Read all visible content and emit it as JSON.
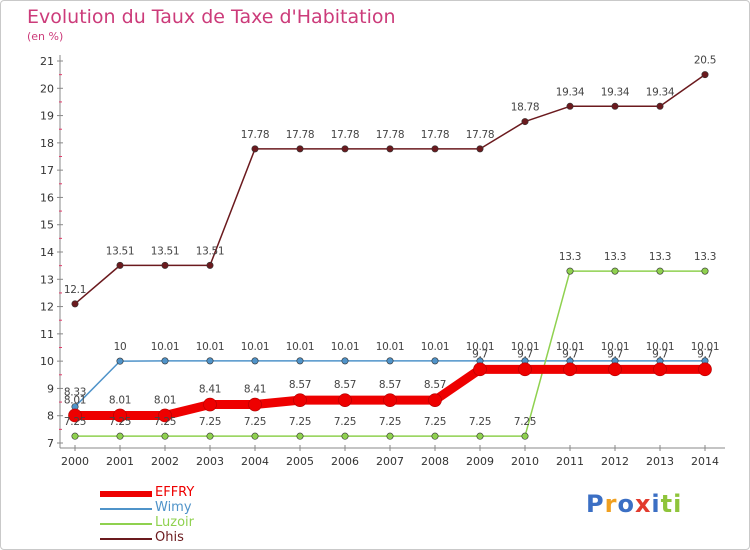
{
  "title": "Evolution du Taux de Taxe d'Habitation",
  "subtitle": "(en %)",
  "logo_text": "Proxiti",
  "chart_data": {
    "type": "line",
    "title": "Evolution du Taux de Taxe d'Habitation",
    "ylabel": "(en %)",
    "xlabel": "",
    "x": [
      2000,
      2001,
      2002,
      2003,
      2004,
      2005,
      2006,
      2007,
      2008,
      2009,
      2010,
      2011,
      2012,
      2013,
      2014
    ],
    "ylim": [
      7,
      21
    ],
    "yticks": [
      7,
      8,
      9,
      10,
      11,
      12,
      13,
      14,
      15,
      16,
      17,
      18,
      19,
      20,
      21
    ],
    "grid": false,
    "legend_position": "bottom-left",
    "series": [
      {
        "name": "Ohis",
        "color": "#6b1a1e",
        "values": [
          12.1,
          13.51,
          13.51,
          13.51,
          17.78,
          17.78,
          17.78,
          17.78,
          17.78,
          17.78,
          18.78,
          19.34,
          19.34,
          19.34,
          20.5
        ],
        "labels": [
          "12.1",
          "13.51",
          "13.51",
          "13.51",
          "17.78",
          "17.78",
          "17.78",
          "17.78",
          "17.78",
          "17.78",
          "18.78",
          "19.34",
          "19.34",
          "19.34",
          "20.5"
        ]
      },
      {
        "name": "Wimy",
        "color": "#4f93c9",
        "values": [
          8.33,
          10,
          10.01,
          10.01,
          10.01,
          10.01,
          10.01,
          10.01,
          10.01,
          10.01,
          10.01,
          10.01,
          10.01,
          10.01,
          10.01
        ],
        "labels": [
          "8.33",
          "10",
          "10.01",
          "10.01",
          "10.01",
          "10.01",
          "10.01",
          "10.01",
          "10.01",
          "10.01",
          "10.01",
          "10.01",
          "10.01",
          "10.01",
          "10.01"
        ]
      },
      {
        "name": "Luzoir",
        "color": "#8fd14f",
        "values": [
          7.25,
          7.25,
          7.25,
          7.25,
          7.25,
          7.25,
          7.25,
          7.25,
          7.25,
          7.25,
          7.25,
          13.3,
          13.3,
          13.3,
          13.3
        ],
        "labels": [
          "7.25",
          "7.25",
          "7.25",
          "7.25",
          "7.25",
          "7.25",
          "7.25",
          "7.25",
          "7.25",
          "7.25",
          "7.25",
          "13.3",
          "13.3",
          "13.3",
          "13.3"
        ]
      },
      {
        "name": "EFFRY",
        "color": "#ee0000",
        "values": [
          8.01,
          8.01,
          8.01,
          8.41,
          8.41,
          8.57,
          8.57,
          8.57,
          8.57,
          9.7,
          9.7,
          9.7,
          9.7,
          9.7,
          9.7
        ],
        "labels": [
          "8.01",
          "8.01",
          "8.01",
          "8.41",
          "8.41",
          "8.57",
          "8.57",
          "8.57",
          "8.57",
          "9.7",
          "9.7",
          "9.7",
          "9.7",
          "9.7",
          "9.7"
        ]
      }
    ]
  },
  "legend": [
    {
      "name": "EFFRY",
      "color": "#ee0000"
    },
    {
      "name": "Wimy",
      "color": "#4f93c9"
    },
    {
      "name": "Luzoir",
      "color": "#8fd14f"
    },
    {
      "name": "Ohis",
      "color": "#6b1a1e"
    }
  ]
}
